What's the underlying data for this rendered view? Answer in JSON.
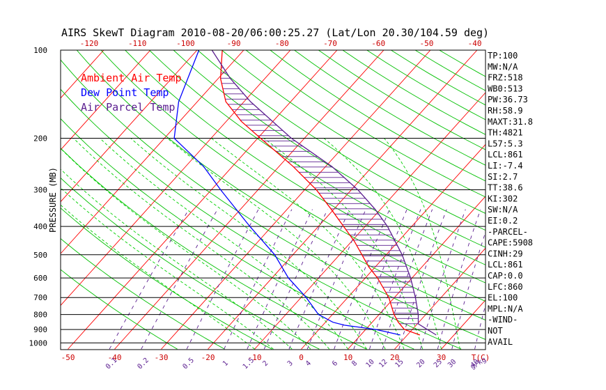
{
  "chart_data": {
    "type": "line",
    "title": "AIRS SkewT Diagram 2010-08-20/06:00:25.27 (Lat/Lon 20.30/104.59 deg)",
    "ylabel": "PRESSURE (MB)",
    "xlabel": "T(C)",
    "mixing_ratio_unit": "g/kg",
    "pressure_ticks": [
      100,
      200,
      300,
      400,
      500,
      600,
      700,
      800,
      900,
      1000
    ],
    "pressure_range_mb": [
      1050,
      100
    ],
    "bottom_temp_ticks": [
      -50,
      -40,
      -30,
      -20,
      -10,
      0,
      10,
      20,
      30
    ],
    "top_temp_ticks": [
      -120,
      -110,
      -100,
      -90,
      -80,
      -70,
      -60,
      -50,
      -40
    ],
    "mixing_ratio_ticks": [
      "0.1",
      "0.2",
      "0.5",
      "1",
      "1.5",
      "2",
      "3",
      "4",
      "6",
      "8",
      "10",
      "12",
      "15",
      "20",
      "25",
      "30",
      "40"
    ],
    "legend": [
      {
        "label": "Ambient Air Temp",
        "color": "#ff0000"
      },
      {
        "label": "Dew Point Temp",
        "color": "#0000ff"
      },
      {
        "label": "Air Parcel Temp",
        "color": "#5a1d8f"
      }
    ],
    "series": [
      {
        "name": "Ambient Air Temp",
        "color": "#ff0000",
        "points": [
          [
            940,
            22.7
          ],
          [
            900,
            18.3
          ],
          [
            850,
            15.6
          ],
          [
            800,
            13.2
          ],
          [
            700,
            8.8
          ],
          [
            600,
            2.6
          ],
          [
            550,
            -1.4
          ],
          [
            500,
            -5.2
          ],
          [
            450,
            -9.4
          ],
          [
            400,
            -14.6
          ],
          [
            350,
            -20.5
          ],
          [
            300,
            -27.5
          ],
          [
            250,
            -36.9
          ],
          [
            225,
            -42.8
          ],
          [
            200,
            -49.4
          ],
          [
            175,
            -56.8
          ],
          [
            150,
            -63.9
          ],
          [
            125,
            -69.5
          ],
          [
            100,
            -74.6
          ]
        ]
      },
      {
        "name": "Dew Point Temp",
        "color": "#0000ff",
        "points": [
          [
            940,
            18.5
          ],
          [
            900,
            12.2
          ],
          [
            870,
            4.6
          ],
          [
            850,
            1.6
          ],
          [
            800,
            -3.0
          ],
          [
            700,
            -8.9
          ],
          [
            600,
            -16.5
          ],
          [
            500,
            -23.9
          ],
          [
            400,
            -34.7
          ],
          [
            300,
            -48.0
          ],
          [
            250,
            -56.1
          ],
          [
            200,
            -67.9
          ],
          [
            150,
            -74.0
          ],
          [
            100,
            -79.6
          ]
        ]
      },
      {
        "name": "Air Parcel Temp",
        "color": "#5a1d8f",
        "points": [
          [
            940,
            26.2
          ],
          [
            900,
            23.2
          ],
          [
            861,
            20.2
          ],
          [
            800,
            18.4
          ],
          [
            700,
            14.5
          ],
          [
            600,
            9.7
          ],
          [
            500,
            3.4
          ],
          [
            400,
            -5.2
          ],
          [
            350,
            -11.1
          ],
          [
            300,
            -18.6
          ],
          [
            250,
            -28.6
          ],
          [
            200,
            -42.8
          ],
          [
            150,
            -58.6
          ],
          [
            125,
            -67.4
          ],
          [
            100,
            -76.8
          ]
        ]
      }
    ],
    "wind_note": [
      "NOT",
      "AVAIL"
    ]
  },
  "stats": [
    "TP:100",
    "MW:N/A",
    "FRZ:518",
    "WB0:513",
    "PW:36.73",
    "RH:58.9",
    "MAXT:31.8",
    "TH:4821",
    "L57:5.3",
    "LCL:861",
    "LI:-7.4",
    "SI:2.7",
    "TT:38.6",
    "KI:302",
    "SW:N/A",
    "EI:0.2",
    "-PARCEL-",
    "CAPE:5908",
    "CINH:29",
    "LCL:861",
    "CAP:0.0",
    "LFC:860",
    "EL:100",
    "MPL:N/A",
    "-WIND-",
    "NOT",
    "AVAIL"
  ],
  "colors": {
    "isotherm": "#ff0000",
    "dry_adiabat": "#00c000",
    "moist_adiabat": "#00d000",
    "mixing_ratio": "#5a1d8f",
    "isobar": "#000000",
    "axis_text": "#000000",
    "bottom_axis_text": "#cc0000",
    "top_axis_text": "#cc0000",
    "mix_text": "#5a1d8f"
  }
}
